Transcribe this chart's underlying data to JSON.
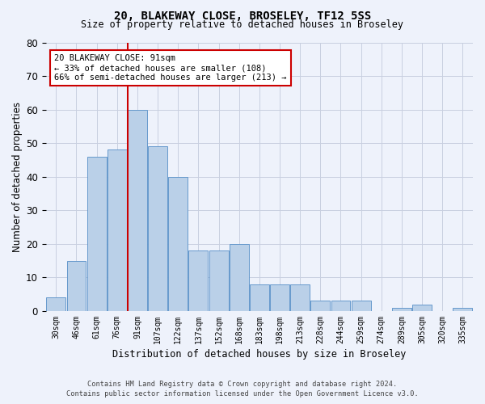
{
  "title1": "20, BLAKEWAY CLOSE, BROSELEY, TF12 5SS",
  "title2": "Size of property relative to detached houses in Broseley",
  "xlabel": "Distribution of detached houses by size in Broseley",
  "ylabel": "Number of detached properties",
  "categories": [
    "30sqm",
    "46sqm",
    "61sqm",
    "76sqm",
    "91sqm",
    "107sqm",
    "122sqm",
    "137sqm",
    "152sqm",
    "168sqm",
    "183sqm",
    "198sqm",
    "213sqm",
    "228sqm",
    "244sqm",
    "259sqm",
    "274sqm",
    "289sqm",
    "305sqm",
    "320sqm",
    "335sqm"
  ],
  "values": [
    4,
    15,
    46,
    48,
    60,
    49,
    40,
    18,
    18,
    20,
    8,
    8,
    8,
    3,
    3,
    3,
    0,
    1,
    2,
    0,
    1
  ],
  "bar_color": "#bad0e8",
  "bar_edge_color": "#6699cc",
  "highlight_index": 4,
  "highlight_color": "#cc0000",
  "ylim": [
    0,
    80
  ],
  "yticks": [
    0,
    10,
    20,
    30,
    40,
    50,
    60,
    70,
    80
  ],
  "annotation_text": "20 BLAKEWAY CLOSE: 91sqm\n← 33% of detached houses are smaller (108)\n66% of semi-detached houses are larger (213) →",
  "annotation_box_color": "#ffffff",
  "annotation_box_edge": "#cc0000",
  "footer1": "Contains HM Land Registry data © Crown copyright and database right 2024.",
  "footer2": "Contains public sector information licensed under the Open Government Licence v3.0.",
  "background_color": "#eef2fb",
  "grid_color": "#c8cfe0"
}
